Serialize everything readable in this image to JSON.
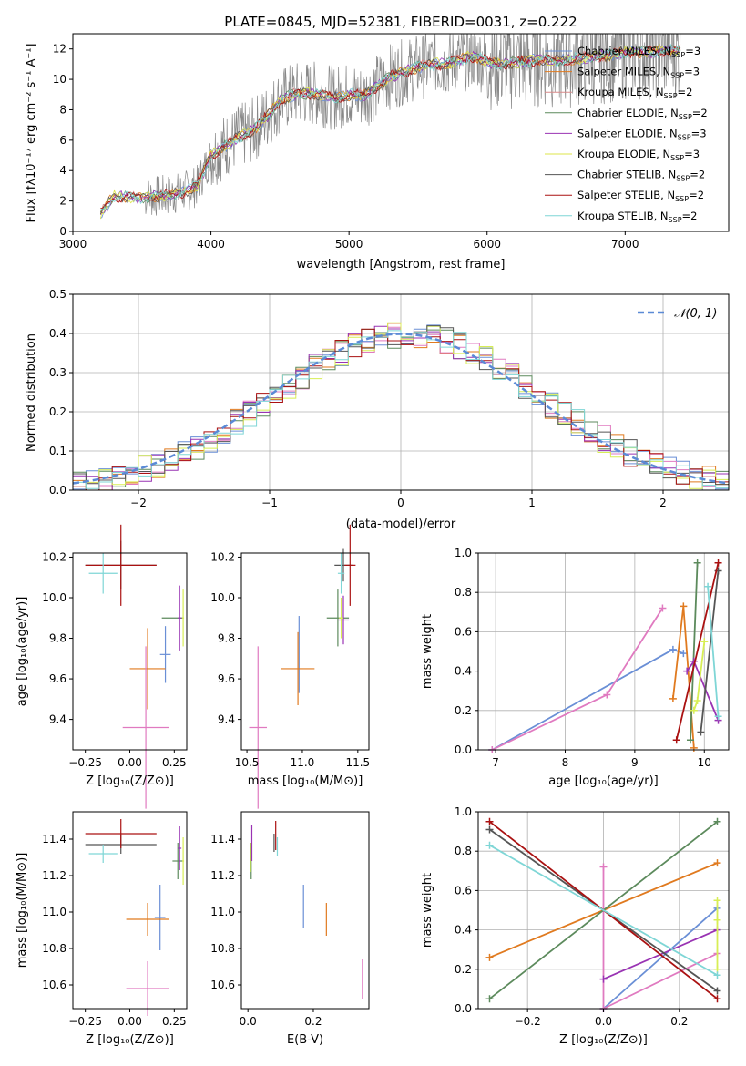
{
  "chart_data": [
    {
      "id": "spectrum",
      "type": "line",
      "title": "PLATE=0845, MJD=52381, FIBERID=0031, z=0.222",
      "xlabel": "wavelength [Angstrom, rest frame]",
      "ylabel": "Flux [fλ10⁻¹⁷ erg cm⁻² s⁻¹ A⁻¹]",
      "xlim": [
        3000,
        7750
      ],
      "ylim": [
        0,
        13
      ],
      "xticks": [
        3000,
        4000,
        5000,
        6000,
        7000
      ],
      "yticks": [
        0,
        2,
        4,
        6,
        8,
        10,
        12
      ],
      "legend": "top-right",
      "series": [
        {
          "name": "Chabrier MILES, N_SSP=3",
          "color": "#6a8fd6"
        },
        {
          "name": "Salpeter MILES, N_SSP=3",
          "color": "#e07a1f"
        },
        {
          "name": "Kroupa MILES, N_SSP=2",
          "color": "#d88a8a"
        },
        {
          "name": "Chabrier ELODIE, N_SSP=2",
          "color": "#5c8a5c"
        },
        {
          "name": "Salpeter ELODIE, N_SSP=3",
          "color": "#9933b3"
        },
        {
          "name": "Kroupa ELODIE, N_SSP=3",
          "color": "#dde64a"
        },
        {
          "name": "Chabrier STELIB, N_SSP=2",
          "color": "#555555"
        },
        {
          "name": "Salpeter STELIB, N_SSP=2",
          "color": "#aa1111"
        },
        {
          "name": "Kroupa STELIB, N_SSP=2",
          "color": "#7fd6d6"
        }
      ],
      "model_continuum": {
        "x": [
          3200,
          3300,
          3400,
          3500,
          3600,
          3700,
          3800,
          3900,
          4000,
          4100,
          4200,
          4300,
          4400,
          4500,
          4600,
          4700,
          4800,
          4900,
          5000,
          5100,
          5200,
          5300,
          5400,
          5500,
          5600,
          5700,
          5800,
          5900,
          6000,
          6100,
          6200,
          6300,
          6400,
          6500,
          6600,
          6700,
          6800,
          6900,
          7000,
          7100,
          7200,
          7300,
          7400
        ],
        "y": [
          1.2,
          2.3,
          2.3,
          2.2,
          2.3,
          2.4,
          2.6,
          3.0,
          5.0,
          5.6,
          6.2,
          6.6,
          7.5,
          8.6,
          9.0,
          9.1,
          9.0,
          8.8,
          9.0,
          8.9,
          9.5,
          10.2,
          10.5,
          10.8,
          11.0,
          11.0,
          11.3,
          11.5,
          11.2,
          11.0,
          11.1,
          11.2,
          11.3,
          11.2,
          11.3,
          11.4,
          11.5,
          11.6,
          11.8,
          11.8,
          11.8,
          11.9,
          11.9
        ]
      }
    },
    {
      "id": "residuals",
      "type": "line",
      "xlabel": "(data-model)/error",
      "ylabel": "Normed distribution",
      "xlim": [
        -2.5,
        2.5
      ],
      "ylim": [
        0,
        0.5
      ],
      "xticks": [
        -2,
        -1,
        0,
        1,
        2
      ],
      "yticks": [
        0.0,
        0.1,
        0.2,
        0.3,
        0.4,
        0.5
      ],
      "legend": "top-right",
      "gaussian_label": "𝒩(0, 1)",
      "gaussian_color": "#5b8ad6"
    },
    {
      "id": "age_vs_Z",
      "type": "scatter",
      "xlabel": "Z [log₁₀(Z/Z⊙)]",
      "ylabel": "age  [log₁₀(age/yr)]",
      "xlim": [
        -0.32,
        0.32
      ],
      "ylim": [
        9.25,
        10.22
      ],
      "xticks": [
        -0.25,
        0.0,
        0.25
      ],
      "xticklabels": [
        "−0.25",
        "0.00",
        "0.25"
      ],
      "yticks": [
        9.4,
        9.6,
        9.8,
        10.0,
        10.2
      ],
      "points": [
        {
          "series": "Chabrier MILES",
          "x": 0.2,
          "y": 9.72,
          "xerr": 0.03,
          "yerr": 0.14
        },
        {
          "series": "Salpeter MILES",
          "x": 0.1,
          "y": 9.65,
          "xerr": 0.1,
          "yerr": 0.2
        },
        {
          "series": "Kroupa MILES",
          "x": 0.09,
          "y": 9.36,
          "xerr": 0.13,
          "yerr": 0.4
        },
        {
          "series": "Chabrier ELODIE",
          "x": 0.24,
          "y": 9.9,
          "xerr": 0.06,
          "yerr": 0.0
        },
        {
          "series": "Salpeter ELODIE",
          "x": 0.28,
          "y": 9.9,
          "xerr": 0.01,
          "yerr": 0.16
        },
        {
          "series": "Kroupa ELODIE",
          "x": 0.3,
          "y": 9.9,
          "xerr": 0.005,
          "yerr": 0.14
        },
        {
          "series": "Chabrier STELIB",
          "x": -0.05,
          "y": 10.16,
          "xerr": 0.2,
          "yerr": 0.12
        },
        {
          "series": "Salpeter STELIB",
          "x": -0.05,
          "y": 10.16,
          "xerr": 0.2,
          "yerr": 0.2
        },
        {
          "series": "Kroupa STELIB",
          "x": -0.15,
          "y": 10.12,
          "xerr": 0.08,
          "yerr": 0.1
        }
      ]
    },
    {
      "id": "age_vs_mass",
      "type": "scatter",
      "xlabel": "mass [log₁₀(M/M⊙)]",
      "xlim": [
        10.45,
        11.6
      ],
      "ylim": [
        9.25,
        10.22
      ],
      "xticks": [
        10.5,
        11.0,
        11.5
      ],
      "xticklabels": [
        "10.5",
        "11.0",
        "11.5"
      ],
      "yticks": [
        9.4,
        9.6,
        9.8,
        10.0,
        10.2
      ],
      "points": [
        {
          "series": "Chabrier MILES",
          "x": 10.97,
          "y": 9.72,
          "xerr": 0.0,
          "yerr": 0.19
        },
        {
          "series": "Salpeter MILES",
          "x": 10.96,
          "y": 9.65,
          "xerr": 0.15,
          "yerr": 0.18
        },
        {
          "series": "Kroupa MILES",
          "x": 10.6,
          "y": 9.36,
          "xerr": 0.08,
          "yerr": 0.4
        },
        {
          "series": "Chabrier ELODIE",
          "x": 11.32,
          "y": 9.9,
          "xerr": 0.1,
          "yerr": 0.14
        },
        {
          "series": "Salpeter ELODIE",
          "x": 11.37,
          "y": 9.89,
          "xerr": 0.05,
          "yerr": 0.12
        },
        {
          "series": "Kroupa ELODIE",
          "x": 11.35,
          "y": 9.9,
          "xerr": 0.02,
          "yerr": 0.1
        },
        {
          "series": "Chabrier STELIB",
          "x": 11.37,
          "y": 10.16,
          "xerr": 0.08,
          "yerr": 0.08
        },
        {
          "series": "Salpeter STELIB",
          "x": 11.43,
          "y": 10.16,
          "xerr": 0.05,
          "yerr": 0.2
        },
        {
          "series": "Kroupa STELIB",
          "x": 11.35,
          "y": 10.12,
          "xerr": 0.03,
          "yerr": 0.1
        }
      ]
    },
    {
      "id": "weight_vs_age",
      "type": "line",
      "xlabel": "age  [log₁₀(age/yr)]",
      "ylabel": "mass weight",
      "xlim": [
        6.75,
        10.35
      ],
      "ylim": [
        0,
        1
      ],
      "xticks": [
        7,
        8,
        9,
        10
      ],
      "yticks": [
        0.0,
        0.2,
        0.4,
        0.6,
        0.8,
        1.0
      ],
      "series": [
        {
          "name": "Chabrier MILES",
          "x": [
            6.95,
            9.55,
            9.7
          ],
          "y": [
            0.0,
            0.51,
            0.49
          ]
        },
        {
          "name": "Salpeter MILES",
          "x": [
            9.55,
            9.7,
            9.85
          ],
          "y": [
            0.26,
            0.73,
            0.01
          ]
        },
        {
          "name": "Kroupa MILES",
          "x": [
            6.95,
            8.6,
            9.4
          ],
          "y": [
            0.0,
            0.28,
            0.72
          ]
        },
        {
          "name": "Chabrier ELODIE",
          "x": [
            9.8,
            9.9
          ],
          "y": [
            0.05,
            0.95
          ]
        },
        {
          "name": "Salpeter ELODIE",
          "x": [
            9.75,
            9.85,
            10.2
          ],
          "y": [
            0.4,
            0.45,
            0.15
          ]
        },
        {
          "name": "Kroupa ELODIE",
          "x": [
            9.85,
            9.9,
            10.0
          ],
          "y": [
            0.2,
            0.25,
            0.55
          ]
        },
        {
          "name": "Chabrier STELIB",
          "x": [
            9.95,
            10.2
          ],
          "y": [
            0.09,
            0.91
          ]
        },
        {
          "name": "Salpeter STELIB",
          "x": [
            9.6,
            10.2
          ],
          "y": [
            0.05,
            0.95
          ]
        },
        {
          "name": "Kroupa STELIB",
          "x": [
            10.05,
            10.2
          ],
          "y": [
            0.83,
            0.17
          ]
        }
      ]
    },
    {
      "id": "mass_vs_Z",
      "type": "scatter",
      "xlabel": "Z [log₁₀(Z/Z⊙)]",
      "ylabel": "mass [log₁₀(M/M⊙)]",
      "xlim": [
        -0.32,
        0.32
      ],
      "ylim": [
        10.47,
        11.55
      ],
      "xticks": [
        -0.25,
        0.0,
        0.25
      ],
      "xticklabels": [
        "−0.25",
        "0.00",
        "0.25"
      ],
      "yticks": [
        10.6,
        10.8,
        11.0,
        11.2,
        11.4
      ],
      "points": [
        {
          "series": "Chabrier MILES",
          "x": 0.17,
          "y": 10.97,
          "xerr": 0.03,
          "yerr": 0.18
        },
        {
          "series": "Salpeter MILES",
          "x": 0.1,
          "y": 10.96,
          "xerr": 0.12,
          "yerr": 0.09
        },
        {
          "series": "Kroupa MILES",
          "x": 0.1,
          "y": 10.58,
          "xerr": 0.12,
          "yerr": 0.15
        },
        {
          "series": "Chabrier ELODIE",
          "x": 0.27,
          "y": 11.28,
          "xerr": 0.03,
          "yerr": 0.1
        },
        {
          "series": "Salpeter ELODIE",
          "x": 0.28,
          "y": 11.35,
          "xerr": 0.01,
          "yerr": 0.12
        },
        {
          "series": "Kroupa ELODIE",
          "x": 0.3,
          "y": 11.28,
          "xerr": 0.005,
          "yerr": 0.13
        },
        {
          "series": "Chabrier STELIB",
          "x": -0.05,
          "y": 11.37,
          "xerr": 0.2,
          "yerr": 0.05
        },
        {
          "series": "Salpeter STELIB",
          "x": -0.05,
          "y": 11.43,
          "xerr": 0.2,
          "yerr": 0.08
        },
        {
          "series": "Kroupa STELIB",
          "x": -0.15,
          "y": 11.32,
          "xerr": 0.08,
          "yerr": 0.05
        }
      ]
    },
    {
      "id": "mass_vs_ebv",
      "type": "scatter",
      "xlabel": "E(B-V)",
      "xlim": [
        -0.02,
        0.37
      ],
      "ylim": [
        10.47,
        11.55
      ],
      "xticks": [
        0.0,
        0.2
      ],
      "xticklabels": [
        "0.0",
        "0.2"
      ],
      "yticks": [
        10.6,
        10.8,
        11.0,
        11.2,
        11.4
      ],
      "points": [
        {
          "series": "Chabrier MILES",
          "x": 0.17,
          "y": 11.03,
          "yerr": 0.12
        },
        {
          "series": "Salpeter MILES",
          "x": 0.24,
          "y": 10.96,
          "yerr": 0.09
        },
        {
          "series": "Kroupa MILES",
          "x": 0.35,
          "y": 10.63,
          "yerr": 0.11
        },
        {
          "series": "Chabrier ELODIE",
          "x": 0.01,
          "y": 11.28,
          "yerr": 0.1
        },
        {
          "series": "Salpeter ELODIE",
          "x": 0.012,
          "y": 11.38,
          "yerr": 0.1
        },
        {
          "series": "Kroupa ELODIE",
          "x": 0.008,
          "y": 11.3,
          "yerr": 0.08
        },
        {
          "series": "Chabrier STELIB",
          "x": 0.08,
          "y": 11.38,
          "yerr": 0.05
        },
        {
          "series": "Salpeter STELIB",
          "x": 0.085,
          "y": 11.42,
          "yerr": 0.08
        },
        {
          "series": "Kroupa STELIB",
          "x": 0.09,
          "y": 11.36,
          "yerr": 0.05
        }
      ]
    },
    {
      "id": "weight_vs_Z",
      "type": "line",
      "xlabel": "Z [log₁₀(Z/Z⊙)]",
      "ylabel": "mass weight",
      "xlim": [
        -0.33,
        0.33
      ],
      "ylim": [
        0,
        1
      ],
      "xticks": [
        -0.2,
        0.0,
        0.2
      ],
      "xticklabels": [
        "−0.2",
        "0.0",
        "0.2"
      ],
      "yticks": [
        0.0,
        0.2,
        0.4,
        0.6,
        0.8,
        1.0
      ],
      "series": [
        {
          "name": "Chabrier MILES",
          "x": [
            0.0,
            0.3
          ],
          "y": [
            0.0,
            0.51
          ]
        },
        {
          "name": "Salpeter MILES",
          "x": [
            -0.3,
            0.3
          ],
          "y": [
            0.26,
            0.74
          ]
        },
        {
          "name": "Kroupa MILES",
          "x": [
            0.0,
            0.0,
            0.3
          ],
          "y": [
            0.72,
            0.0,
            0.28
          ]
        },
        {
          "name": "Chabrier ELODIE",
          "x": [
            -0.3,
            0.3
          ],
          "y": [
            0.05,
            0.95
          ]
        },
        {
          "name": "Salpeter ELODIE",
          "x": [
            0.0,
            0.3
          ],
          "y": [
            0.15,
            0.4
          ]
        },
        {
          "name": "Kroupa ELODIE",
          "x": [
            0.3,
            0.3,
            0.3
          ],
          "y": [
            0.2,
            0.55,
            0.45
          ]
        },
        {
          "name": "Chabrier STELIB",
          "x": [
            -0.3,
            0.3
          ],
          "y": [
            0.91,
            0.09
          ]
        },
        {
          "name": "Salpeter STELIB",
          "x": [
            -0.3,
            0.3
          ],
          "y": [
            0.95,
            0.05
          ]
        },
        {
          "name": "Kroupa STELIB",
          "x": [
            -0.3,
            0.3
          ],
          "y": [
            0.83,
            0.17
          ]
        }
      ]
    }
  ]
}
